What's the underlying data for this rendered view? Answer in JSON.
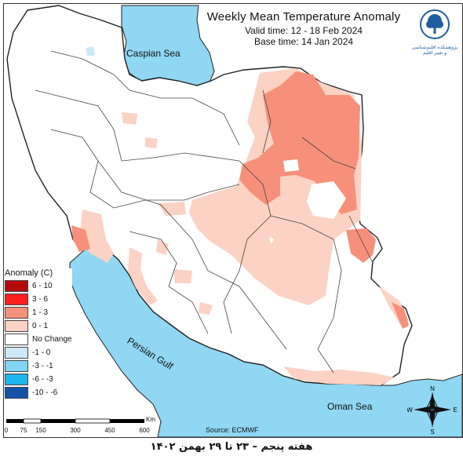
{
  "title": "Weekly Mean Temperature Anomaly",
  "valid_time": "Valid time: 12 - 18 Feb 2024",
  "base_time": "Base time: 14 Jan 2024",
  "logo": {
    "icon": "tree-logo-icon",
    "text": "پژوهشکده اقلیم‌شناسی و تغییر اقلیم"
  },
  "seas": {
    "caspian": "Caspian Sea",
    "persian_gulf": "Persian Gulf",
    "oman": "Oman Sea"
  },
  "legend": {
    "title": "Anomaly (C)",
    "items": [
      {
        "label": "6 - 10",
        "color": "#b40a0a"
      },
      {
        "label": "3 - 6",
        "color": "#ff1f1f"
      },
      {
        "label": "1 - 3",
        "color": "#f7907a"
      },
      {
        "label": "0 - 1",
        "color": "#fbd2c3"
      },
      {
        "label": "No Change",
        "color": "#ffffff"
      },
      {
        "label": "-1 - 0",
        "color": "#cde9fa"
      },
      {
        "label": "-3 - -1",
        "color": "#7fd6f3"
      },
      {
        "label": "-6 - -3",
        "color": "#1eb5ec"
      },
      {
        "label": "-10 - -6",
        "color": "#1253a8"
      }
    ]
  },
  "scale": {
    "unit": "Km",
    "ticks": [
      "0",
      "75",
      "150",
      "300",
      "450",
      "600"
    ]
  },
  "compass": {
    "icon": "compass-rose-icon",
    "n": "N",
    "s": "S",
    "e": "E",
    "w": "W"
  },
  "source": "Source: ECMWF",
  "caption": "هفته پنجم – ۲۳ تا ۲۹ بهمن ۱۴۰۲",
  "colors": {
    "sea": "#8fd7f2",
    "border": "#222222",
    "province": "#444444"
  }
}
